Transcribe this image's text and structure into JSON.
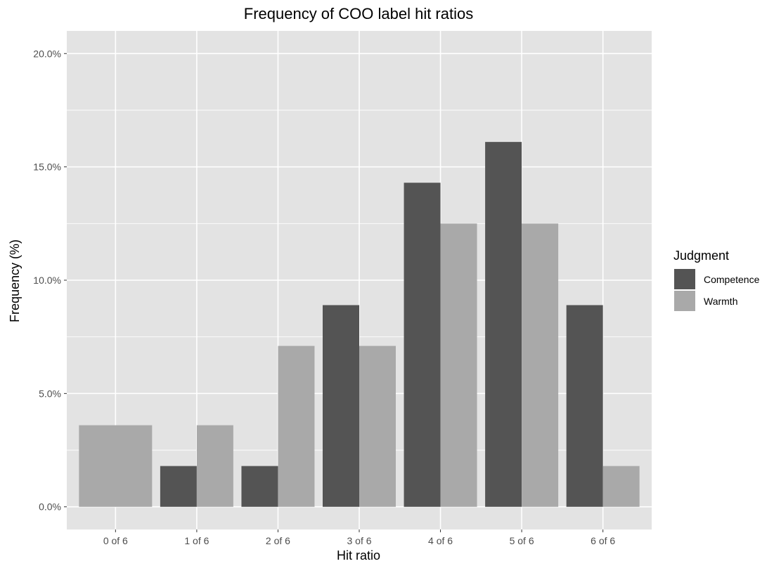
{
  "chart_data": {
    "type": "bar",
    "title": "Frequency of COO label hit ratios",
    "xlabel": "Hit ratio",
    "ylabel": "Frequency (%)",
    "categories": [
      "0 of 6",
      "1 of 6",
      "2 of 6",
      "3 of 6",
      "4 of 6",
      "5 of 6",
      "6 of 6"
    ],
    "series": [
      {
        "name": "Competence",
        "color": "#545454",
        "values": [
          0.0,
          1.8,
          1.8,
          8.9,
          14.3,
          16.1,
          8.9
        ]
      },
      {
        "name": "Warmth",
        "color": "#a9a9a9",
        "values": [
          3.6,
          3.6,
          7.1,
          7.1,
          12.5,
          12.5,
          1.8
        ]
      }
    ],
    "ylim": [
      -1.0,
      21.0
    ],
    "yticks": [
      0,
      5,
      10,
      15,
      20
    ],
    "ytick_labels": [
      "0.0%",
      "5.0%",
      "10.0%",
      "15.0%",
      "20.0%"
    ],
    "legend": {
      "title": "Judgment",
      "placement": "right",
      "entries": [
        "Competence",
        "Warmth"
      ]
    },
    "grid": true,
    "panel_background": "#e3e3e3",
    "grid_color": "#ffffff"
  }
}
